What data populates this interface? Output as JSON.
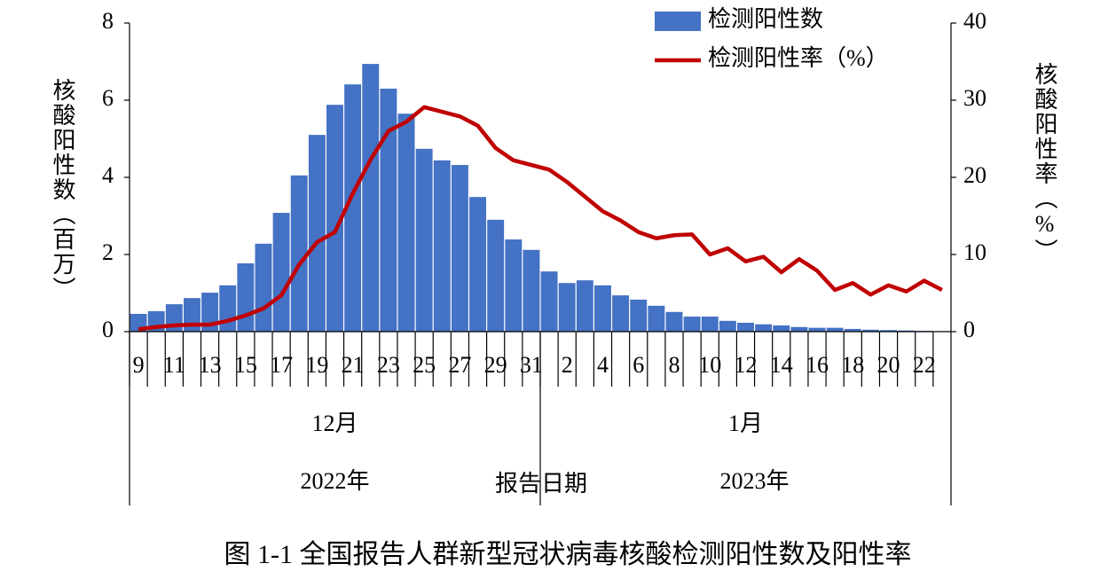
{
  "chart_data": {
    "type": "bar",
    "title": "图 1-1  全国报告人群新型冠状病毒核酸检测阳性数及阳性率",
    "xlabel": "报告日期",
    "ylabel": "核酸阳性数（百万）",
    "y2label": "核酸阳性率（%）",
    "categories": [
      "9",
      null,
      "11",
      null,
      "13",
      null,
      "15",
      null,
      "17",
      null,
      "19",
      null,
      "21",
      null,
      "23",
      null,
      "25",
      null,
      "27",
      null,
      "29",
      null,
      "31",
      null,
      "2",
      null,
      "4",
      null,
      "6",
      null,
      "8",
      null,
      "10",
      null,
      "12",
      null,
      "14",
      null,
      "16",
      null,
      "18",
      null,
      "20",
      null,
      "22",
      null
    ],
    "x_groups": [
      {
        "month": "12月",
        "year": "2022年",
        "count": 23
      },
      {
        "month": "1月",
        "year": "2023年",
        "count": 23
      }
    ],
    "series": [
      {
        "name": "检测阳性数",
        "type": "bar",
        "color": "#4472c4",
        "values": [
          0.46,
          0.53,
          0.71,
          0.87,
          1.01,
          1.2,
          1.77,
          2.28,
          3.08,
          4.05,
          5.1,
          5.88,
          6.41,
          6.94,
          6.3,
          5.65,
          4.74,
          4.44,
          4.32,
          3.49,
          2.9,
          2.39,
          2.12,
          1.56,
          1.26,
          1.33,
          1.2,
          0.94,
          0.83,
          0.67,
          0.51,
          0.39,
          0.39,
          0.28,
          0.23,
          0.19,
          0.16,
          0.12,
          0.1,
          0.1,
          0.07,
          0.05,
          0.04,
          0.03,
          0.02,
          0.01
        ]
      },
      {
        "name": "检测阳性率（%）",
        "type": "line",
        "axis": "y2",
        "color": "#c00000",
        "values": [
          0.3,
          0.6,
          0.8,
          0.9,
          0.9,
          1.4,
          2.1,
          3.0,
          4.7,
          8.7,
          11.6,
          12.9,
          17.9,
          22.3,
          26.0,
          27.2,
          29.1,
          28.5,
          27.9,
          26.7,
          23.8,
          22.2,
          21.6,
          21.0,
          19.4,
          17.5,
          15.6,
          14.4,
          12.9,
          12.1,
          12.5,
          12.6,
          10.0,
          10.8,
          9.1,
          9.7,
          7.7,
          9.4,
          7.9,
          5.4,
          6.3,
          4.8,
          6.0,
          5.2,
          6.6,
          5.4
        ]
      }
    ],
    "ylim": [
      0,
      8
    ],
    "yticks": [
      0,
      2,
      4,
      6,
      8
    ],
    "y2lim": [
      0,
      40
    ],
    "y2ticks": [
      0,
      10,
      20,
      30,
      40
    ],
    "grid": false,
    "legend": "top-right"
  }
}
